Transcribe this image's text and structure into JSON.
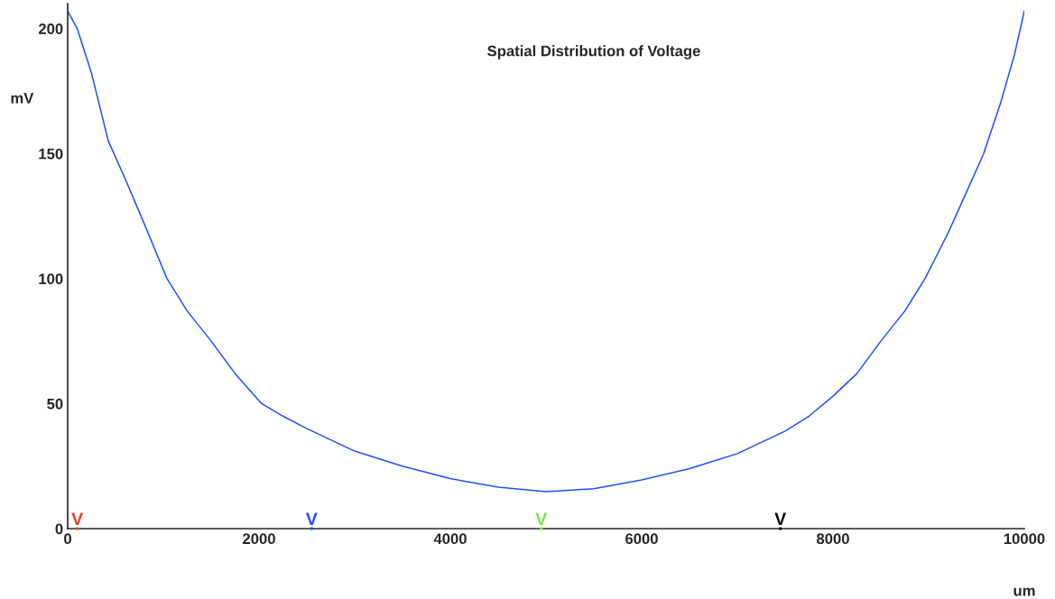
{
  "chart_data": {
    "type": "line",
    "title": "Spatial Distribution of Voltage",
    "xlabel": "um",
    "ylabel": "mV",
    "x": [
      0,
      100,
      250,
      425,
      600,
      800,
      1038,
      1250,
      1500,
      1750,
      2028,
      2250,
      2500,
      3000,
      3500,
      4000,
      4500,
      5000,
      5500,
      6000,
      6500,
      7000,
      7500,
      7750,
      8000,
      8250,
      8500,
      8750,
      8962,
      9200,
      9400,
      9575,
      9750,
      9900,
      10000
    ],
    "series": [
      {
        "color": "#1f4fff",
        "values": [
          207,
          200,
          182,
          155,
          140,
          122,
          100,
          87,
          75,
          62,
          50,
          45,
          40,
          31,
          25,
          20,
          16.6,
          14.8,
          16,
          19.5,
          24,
          30,
          39,
          45,
          53,
          62,
          75,
          87,
          100,
          118,
          135,
          150,
          170,
          190,
          207
        ]
      },
      {
        "type": "scatter",
        "x": [
          100,
          2550,
          4950,
          7450
        ],
        "values": [
          0,
          0,
          0,
          0
        ],
        "colors": [
          "#e8402a",
          "#1f4fff",
          "#7ee04a",
          "#000000"
        ]
      }
    ],
    "xlim": [
      0,
      10000
    ],
    "ylim": [
      0,
      210
    ],
    "xticks": [
      0,
      2000,
      4000,
      6000,
      8000,
      10000
    ],
    "yticks": [
      0,
      50,
      100,
      150,
      200
    ],
    "grid": false,
    "marker": "none",
    "line_style": "solid",
    "annotations": [
      {
        "text": "V",
        "x": 100,
        "y": 0
      },
      {
        "text": "V",
        "x": 2550,
        "y": 0
      },
      {
        "text": "V",
        "x": 4950,
        "y": 0
      },
      {
        "text": "V",
        "x": 7450,
        "y": 0
      }
    ]
  }
}
